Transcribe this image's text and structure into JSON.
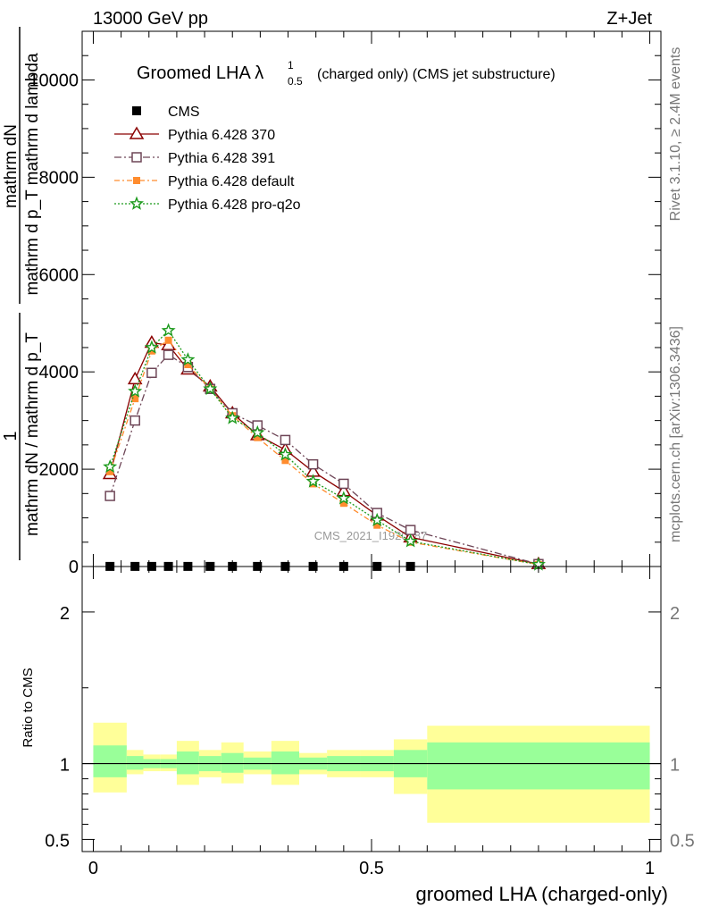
{
  "header": {
    "energy_label": "13000 GeV pp",
    "process_label": "Z+Jet"
  },
  "side_labels": {
    "rivet": "Rivet 3.1.10, ≥ 2.4M events",
    "mcplots": "mcplots.cern.ch [arXiv:1306.3436]"
  },
  "watermark": "CMS_2021_I1920187",
  "colors": {
    "cms": "#000000",
    "py370": "#8b0000",
    "py391": "#6e4657",
    "pydefault": "#ff8c2e",
    "pyq2o": "#1c9a1c",
    "band_inner": "#99ff99",
    "band_outer": "#ffff99"
  },
  "chart_data": [
    {
      "type": "line",
      "title_main": "Groomed LHA λ",
      "title_sup": "1",
      "title_sub": "0.5",
      "title_rest": "(charged only) (CMS jet substructure)",
      "ylabel_num": "mathrm dN",
      "ylabel_den": "mathrm d p_T mathrm d lambda",
      "ylabel_prefix": "1",
      "ylabel_prefix_den": "mathrm dN / mathrm d p_T",
      "xlim": [
        -0.02,
        1.02
      ],
      "ylim": [
        0,
        11000
      ],
      "y_ticks": [
        {
          "value": 0,
          "label": "0"
        },
        {
          "value": 2000,
          "label": "2000"
        },
        {
          "value": 4000,
          "label": "4000"
        },
        {
          "value": 6000,
          "label": "6000"
        },
        {
          "value": 8000,
          "label": "8000"
        },
        {
          "value": 10000,
          "label": "10000"
        }
      ],
      "legend_position": "top-left",
      "x": [
        0.03,
        0.075,
        0.105,
        0.135,
        0.17,
        0.21,
        0.25,
        0.295,
        0.345,
        0.395,
        0.45,
        0.51,
        0.57,
        0.8
      ],
      "series": [
        {
          "name": "CMS",
          "key": "cms",
          "marker": "square",
          "dash": "",
          "values": [
            2,
            2,
            2,
            2,
            2,
            2,
            2,
            2,
            2,
            2,
            2,
            2,
            2,
            null
          ]
        },
        {
          "name": "Pythia 6.428 370",
          "key": "py370",
          "marker": "triangle",
          "dash": "",
          "values": [
            1900,
            3850,
            4600,
            4550,
            4050,
            3700,
            3150,
            2700,
            2400,
            1950,
            1550,
            1050,
            600,
            50
          ]
        },
        {
          "name": "Pythia 6.428 391",
          "key": "py391",
          "marker": "opensquare",
          "dash": "8,3,2,3",
          "values": [
            1450,
            3000,
            3980,
            4350,
            4100,
            3650,
            3150,
            2900,
            2600,
            2100,
            1700,
            1100,
            750,
            50
          ]
        },
        {
          "name": "Pythia 6.428 default",
          "key": "pydefault",
          "marker": "fillsquare",
          "dash": "6,3,2,3",
          "values": [
            1950,
            3450,
            4430,
            4650,
            4150,
            3650,
            3100,
            2650,
            2180,
            1700,
            1300,
            850,
            500,
            40
          ]
        },
        {
          "name": "Pythia 6.428 pro-q2o",
          "key": "pyq2o",
          "marker": "star",
          "dash": "2,2",
          "values": [
            2050,
            3600,
            4500,
            4850,
            4250,
            3650,
            3050,
            2750,
            2300,
            1750,
            1400,
            950,
            520,
            40
          ]
        }
      ]
    },
    {
      "type": "area",
      "ylabel": "Ratio to CMS",
      "xlabel": "groomed LHA (charged-only)",
      "xlim": [
        -0.02,
        1.02
      ],
      "ylim": [
        0.42,
        2.3
      ],
      "x_ticks": [
        {
          "value": 0,
          "label": "0"
        },
        {
          "value": 0.5,
          "label": "0.5"
        },
        {
          "value": 1,
          "label": "1"
        }
      ],
      "y_ticks": [
        {
          "value": 0.5,
          "label": "0.5"
        },
        {
          "value": 1,
          "label": "1"
        },
        {
          "value": 2,
          "label": "2"
        }
      ],
      "bins": [
        {
          "lo": 0.0,
          "hi": 0.06,
          "in_lo": 0.91,
          "in_hi": 1.12,
          "out_lo": 0.81,
          "out_hi": 1.27
        },
        {
          "lo": 0.06,
          "hi": 0.09,
          "in_lo": 0.96,
          "in_hi": 1.05,
          "out_lo": 0.93,
          "out_hi": 1.09
        },
        {
          "lo": 0.09,
          "hi": 0.12,
          "in_lo": 0.97,
          "in_hi": 1.03,
          "out_lo": 0.95,
          "out_hi": 1.06
        },
        {
          "lo": 0.12,
          "hi": 0.15,
          "in_lo": 0.97,
          "in_hi": 1.03,
          "out_lo": 0.95,
          "out_hi": 1.06
        },
        {
          "lo": 0.15,
          "hi": 0.19,
          "in_lo": 0.93,
          "in_hi": 1.08,
          "out_lo": 0.86,
          "out_hi": 1.15
        },
        {
          "lo": 0.19,
          "hi": 0.23,
          "in_lo": 0.95,
          "in_hi": 1.05,
          "out_lo": 0.91,
          "out_hi": 1.09
        },
        {
          "lo": 0.23,
          "hi": 0.27,
          "in_lo": 0.94,
          "in_hi": 1.07,
          "out_lo": 0.87,
          "out_hi": 1.14
        },
        {
          "lo": 0.27,
          "hi": 0.32,
          "in_lo": 0.96,
          "in_hi": 1.04,
          "out_lo": 0.93,
          "out_hi": 1.08
        },
        {
          "lo": 0.32,
          "hi": 0.37,
          "in_lo": 0.93,
          "in_hi": 1.08,
          "out_lo": 0.86,
          "out_hi": 1.15
        },
        {
          "lo": 0.37,
          "hi": 0.42,
          "in_lo": 0.96,
          "in_hi": 1.04,
          "out_lo": 0.93,
          "out_hi": 1.07
        },
        {
          "lo": 0.42,
          "hi": 0.48,
          "in_lo": 0.95,
          "in_hi": 1.05,
          "out_lo": 0.91,
          "out_hi": 1.09
        },
        {
          "lo": 0.48,
          "hi": 0.54,
          "in_lo": 0.95,
          "in_hi": 1.05,
          "out_lo": 0.91,
          "out_hi": 1.09
        },
        {
          "lo": 0.54,
          "hi": 0.6,
          "in_lo": 0.91,
          "in_hi": 1.09,
          "out_lo": 0.8,
          "out_hi": 1.16
        },
        {
          "lo": 0.6,
          "hi": 1.0,
          "in_lo": 0.83,
          "in_hi": 1.14,
          "out_lo": 0.61,
          "out_hi": 1.25
        }
      ],
      "reference_line": 1
    }
  ]
}
